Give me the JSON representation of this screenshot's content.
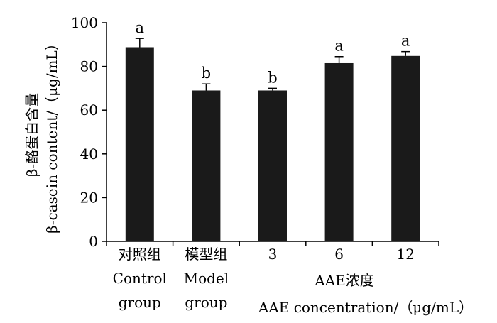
{
  "chart_data": {
    "type": "bar",
    "categories": [
      "对照组\nControl\ngroup",
      "模型组\nModel\ngroup",
      "3",
      "6",
      "12"
    ],
    "values": [
      88.8,
      69.0,
      69.0,
      81.5,
      84.8
    ],
    "errors": [
      4.0,
      3.0,
      1.0,
      3.0,
      2.0
    ],
    "significance_labels": [
      "a",
      "b",
      "b",
      "a",
      "a"
    ],
    "ylabel_line1": "β-酪蛋白含量",
    "ylabel_line2": "β-casein content/（μg/mL）",
    "xlabel_group_line1": "AAE浓度",
    "xlabel_group_line2": "AAE concentration/（μg/mL）",
    "ylim": [
      0,
      100
    ],
    "yticks": [
      0,
      20,
      40,
      60,
      80,
      100
    ],
    "bar_color": "#1a1a1a",
    "grid": false,
    "legend": "none"
  }
}
